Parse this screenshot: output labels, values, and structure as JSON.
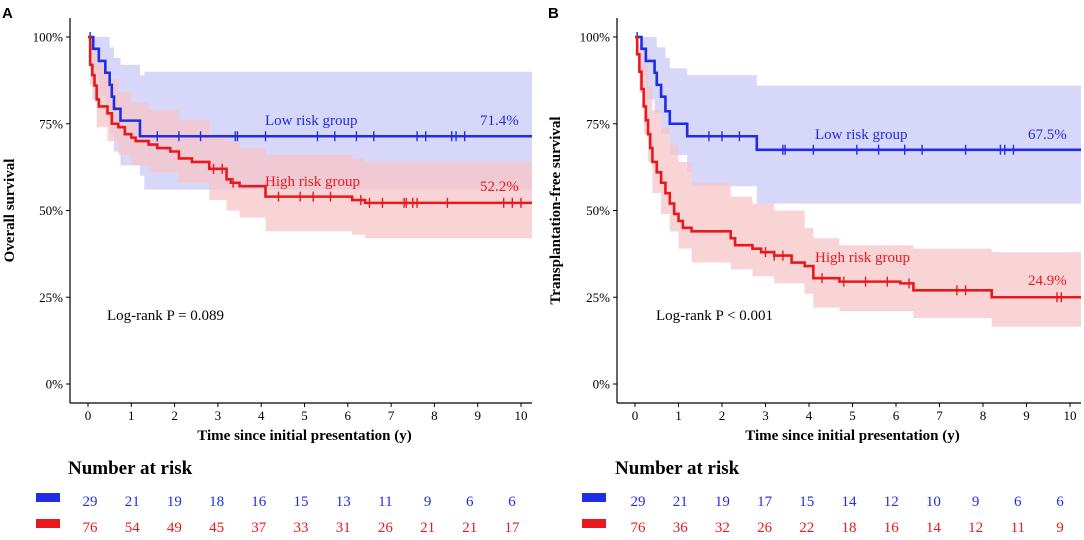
{
  "chart_data": [
    {
      "type": "kaplan-meier",
      "panel": "A",
      "ylabel": "Overall survival",
      "xlabel": "Time since initial presentation (y)",
      "xlim": [
        0,
        10.4
      ],
      "ylim": [
        0,
        100
      ],
      "x_ticks": [
        0,
        1,
        2,
        3,
        4,
        5,
        6,
        7,
        8,
        9,
        10
      ],
      "y_ticks": [
        0,
        25,
        50,
        75,
        100
      ],
      "y_tick_labels": [
        "0%",
        "25%",
        "50%",
        "75%",
        "100%"
      ],
      "pvalue_text": "Log-rank P = 0.089",
      "series": [
        {
          "name": "Low risk group",
          "color": "#1f2ee6",
          "band_color": "#c9c9f7",
          "end_label": "71.4%",
          "steps": [
            [
              0,
              100
            ],
            [
              0.12,
              96.6
            ],
            [
              0.25,
              93.1
            ],
            [
              0.4,
              89.7
            ],
            [
              0.5,
              86.2
            ],
            [
              0.55,
              82.8
            ],
            [
              0.6,
              79.3
            ],
            [
              0.75,
              75.9
            ],
            [
              1.2,
              71.4
            ],
            [
              10.4,
              71.4
            ]
          ],
          "upper": [
            [
              0,
              100
            ],
            [
              0.12,
              100
            ],
            [
              0.3,
              100
            ],
            [
              0.5,
              97
            ],
            [
              0.6,
              94
            ],
            [
              0.75,
              92
            ],
            [
              1.2,
              89
            ],
            [
              1.3,
              90
            ],
            [
              10.4,
              90
            ]
          ],
          "lower": [
            [
              0,
              100
            ],
            [
              0.12,
              89
            ],
            [
              0.25,
              83
            ],
            [
              0.4,
              77
            ],
            [
              0.5,
              72
            ],
            [
              0.6,
              67
            ],
            [
              0.75,
              63
            ],
            [
              1.2,
              60
            ],
            [
              1.3,
              56
            ],
            [
              10.4,
              56
            ]
          ],
          "censor_times": [
            0.05,
            1.6,
            2.1,
            2.6,
            3.4,
            3.45,
            4.1,
            5.3,
            5.7,
            6.2,
            6.6,
            7.6,
            7.8,
            8.4,
            8.5,
            8.7
          ]
        },
        {
          "name": "High risk group",
          "color": "#e8191c",
          "band_color": "#f7c5c8",
          "end_label": "52.2%",
          "steps": [
            [
              0,
              100
            ],
            [
              0.05,
              92
            ],
            [
              0.1,
              89
            ],
            [
              0.15,
              86
            ],
            [
              0.2,
              82
            ],
            [
              0.25,
              80
            ],
            [
              0.45,
              78
            ],
            [
              0.55,
              75
            ],
            [
              0.7,
              74
            ],
            [
              0.85,
              72
            ],
            [
              1.0,
              71
            ],
            [
              1.1,
              70
            ],
            [
              1.4,
              69
            ],
            [
              1.6,
              68
            ],
            [
              1.9,
              67
            ],
            [
              2.1,
              65
            ],
            [
              2.4,
              64
            ],
            [
              2.8,
              62
            ],
            [
              3.2,
              59
            ],
            [
              3.3,
              58
            ],
            [
              3.5,
              57
            ],
            [
              4.1,
              54
            ],
            [
              6.1,
              53
            ],
            [
              6.4,
              52.2
            ],
            [
              10.4,
              52.2
            ]
          ],
          "upper": [
            [
              0,
              100
            ],
            [
              0.05,
              98
            ],
            [
              0.1,
              96
            ],
            [
              0.2,
              92
            ],
            [
              0.45,
              88
            ],
            [
              0.7,
              84
            ],
            [
              1.0,
              81
            ],
            [
              1.4,
              79
            ],
            [
              2.1,
              76
            ],
            [
              2.8,
              72
            ],
            [
              3.2,
              70
            ],
            [
              3.5,
              68
            ],
            [
              4.1,
              66
            ],
            [
              6.1,
              65
            ],
            [
              6.4,
              64
            ],
            [
              10.4,
              64
            ]
          ],
          "lower": [
            [
              0,
              100
            ],
            [
              0.05,
              86
            ],
            [
              0.1,
              82
            ],
            [
              0.2,
              74
            ],
            [
              0.45,
              70
            ],
            [
              0.7,
              66
            ],
            [
              1.0,
              63
            ],
            [
              1.4,
              61
            ],
            [
              2.1,
              58
            ],
            [
              2.8,
              53
            ],
            [
              3.2,
              50
            ],
            [
              3.5,
              48
            ],
            [
              4.1,
              44
            ],
            [
              6.1,
              43
            ],
            [
              6.4,
              42
            ],
            [
              10.4,
              42
            ]
          ],
          "censor_times": [
            2.9,
            3.1,
            3.35,
            4.4,
            4.9,
            5.2,
            5.6,
            6.3,
            6.5,
            6.8,
            7.3,
            7.35,
            7.5,
            7.6,
            8.3,
            9.6,
            9.8,
            10.0
          ]
        }
      ],
      "risk_table": {
        "title": "Number at risk",
        "times": [
          0,
          1,
          2,
          3,
          4,
          5,
          6,
          7,
          8,
          9,
          10
        ],
        "rows": [
          {
            "group": "Low risk group",
            "color": "#1f2ee6",
            "counts": [
              "29",
              "21",
              "19",
              "18",
              "16",
              "15",
              "13",
              "11",
              "9",
              "6",
              "6"
            ]
          },
          {
            "group": "High risk group",
            "color": "#e8191c",
            "counts": [
              "76",
              "54",
              "49",
              "45",
              "37",
              "33",
              "31",
              "26",
              "21",
              "21",
              "17"
            ]
          }
        ]
      }
    },
    {
      "type": "kaplan-meier",
      "panel": "B",
      "ylabel": "Transplantation-free survival",
      "xlabel": "Time since initial presentation (y)",
      "xlim": [
        0,
        10.4
      ],
      "ylim": [
        0,
        100
      ],
      "x_ticks": [
        0,
        1,
        2,
        3,
        4,
        5,
        6,
        7,
        8,
        9,
        10
      ],
      "y_ticks": [
        0,
        25,
        50,
        75,
        100
      ],
      "y_tick_labels": [
        "0%",
        "25%",
        "50%",
        "75%",
        "100%"
      ],
      "pvalue_text": "Log-rank P < 0.001",
      "series": [
        {
          "name": "Low risk group",
          "color": "#1f2ee6",
          "band_color": "#c9c9f7",
          "end_label": "67.5%",
          "steps": [
            [
              0,
              100
            ],
            [
              0.15,
              96.6
            ],
            [
              0.25,
              93.1
            ],
            [
              0.45,
              89.7
            ],
            [
              0.5,
              86.2
            ],
            [
              0.6,
              82.8
            ],
            [
              0.7,
              78.6
            ],
            [
              0.8,
              75
            ],
            [
              1.2,
              71.4
            ],
            [
              2.8,
              67.5
            ],
            [
              10.4,
              67.5
            ]
          ],
          "upper": [
            [
              0,
              100
            ],
            [
              0.3,
              100
            ],
            [
              0.5,
              97
            ],
            [
              0.7,
              94
            ],
            [
              0.8,
              91
            ],
            [
              1.2,
              89
            ],
            [
              1.3,
              89
            ],
            [
              2.8,
              86
            ],
            [
              10.4,
              87
            ]
          ],
          "lower": [
            [
              0,
              100
            ],
            [
              0.15,
              89
            ],
            [
              0.25,
              82
            ],
            [
              0.45,
              78
            ],
            [
              0.6,
              72
            ],
            [
              0.8,
              66
            ],
            [
              1.2,
              61
            ],
            [
              1.3,
              57
            ],
            [
              2.8,
              52
            ],
            [
              10.4,
              52
            ]
          ],
          "censor_times": [
            0.05,
            1.7,
            2.0,
            2.4,
            3.4,
            3.45,
            4.1,
            5.1,
            5.6,
            6.2,
            6.6,
            7.6,
            8.4,
            8.5,
            8.7
          ]
        },
        {
          "name": "High risk group",
          "color": "#e8191c",
          "band_color": "#f7c5c8",
          "end_label": "24.9%",
          "steps": [
            [
              0,
              100
            ],
            [
              0.05,
              95
            ],
            [
              0.1,
              90
            ],
            [
              0.15,
              85
            ],
            [
              0.2,
              80
            ],
            [
              0.25,
              76
            ],
            [
              0.3,
              72
            ],
            [
              0.35,
              68
            ],
            [
              0.4,
              64
            ],
            [
              0.5,
              61
            ],
            [
              0.6,
              58
            ],
            [
              0.7,
              55
            ],
            [
              0.8,
              52
            ],
            [
              0.9,
              49
            ],
            [
              1.0,
              47
            ],
            [
              1.1,
              45
            ],
            [
              1.3,
              44
            ],
            [
              2.2,
              42
            ],
            [
              2.3,
              40
            ],
            [
              2.7,
              39
            ],
            [
              2.9,
              38
            ],
            [
              3.2,
              37
            ],
            [
              3.6,
              35
            ],
            [
              3.9,
              34
            ],
            [
              4.1,
              30.5
            ],
            [
              4.7,
              29.5
            ],
            [
              6.1,
              29
            ],
            [
              6.4,
              27
            ],
            [
              8.2,
              25
            ],
            [
              10.4,
              25
            ]
          ],
          "upper": [
            [
              0,
              100
            ],
            [
              0.1,
              98
            ],
            [
              0.2,
              92
            ],
            [
              0.3,
              86
            ],
            [
              0.4,
              79
            ],
            [
              0.6,
              74
            ],
            [
              0.8,
              69
            ],
            [
              1.0,
              64
            ],
            [
              1.3,
              58
            ],
            [
              2.2,
              54
            ],
            [
              2.7,
              52
            ],
            [
              3.2,
              50
            ],
            [
              3.9,
              45
            ],
            [
              4.1,
              42
            ],
            [
              4.7,
              40
            ],
            [
              6.4,
              39
            ],
            [
              8.2,
              38
            ],
            [
              10.4,
              38
            ]
          ],
          "lower": [
            [
              0,
              100
            ],
            [
              0.1,
              84
            ],
            [
              0.2,
              72
            ],
            [
              0.3,
              64
            ],
            [
              0.4,
              55
            ],
            [
              0.6,
              49
            ],
            [
              0.8,
              44
            ],
            [
              1.0,
              39
            ],
            [
              1.3,
              35
            ],
            [
              2.2,
              33
            ],
            [
              2.7,
              31
            ],
            [
              3.2,
              29
            ],
            [
              3.9,
              26
            ],
            [
              4.1,
              22
            ],
            [
              4.7,
              21
            ],
            [
              6.4,
              19
            ],
            [
              8.2,
              16.5
            ],
            [
              10.4,
              16.5
            ]
          ],
          "censor_times": [
            3.0,
            3.2,
            3.4,
            4.3,
            4.8,
            5.3,
            5.8,
            6.3,
            7.4,
            7.6,
            9.7,
            9.8
          ]
        }
      ],
      "risk_table": {
        "title": "Number at risk",
        "times": [
          0,
          1,
          2,
          3,
          4,
          5,
          6,
          7,
          8,
          9,
          10
        ],
        "rows": [
          {
            "group": "Low risk group",
            "color": "#1f2ee6",
            "counts": [
              "29",
              "21",
              "19",
              "17",
              "15",
              "14",
              "12",
              "10",
              "9",
              "6",
              "6"
            ]
          },
          {
            "group": "High risk group",
            "color": "#e8191c",
            "counts": [
              "76",
              "36",
              "32",
              "26",
              "22",
              "18",
              "16",
              "14",
              "12",
              "11",
              "9"
            ]
          }
        ]
      }
    }
  ]
}
